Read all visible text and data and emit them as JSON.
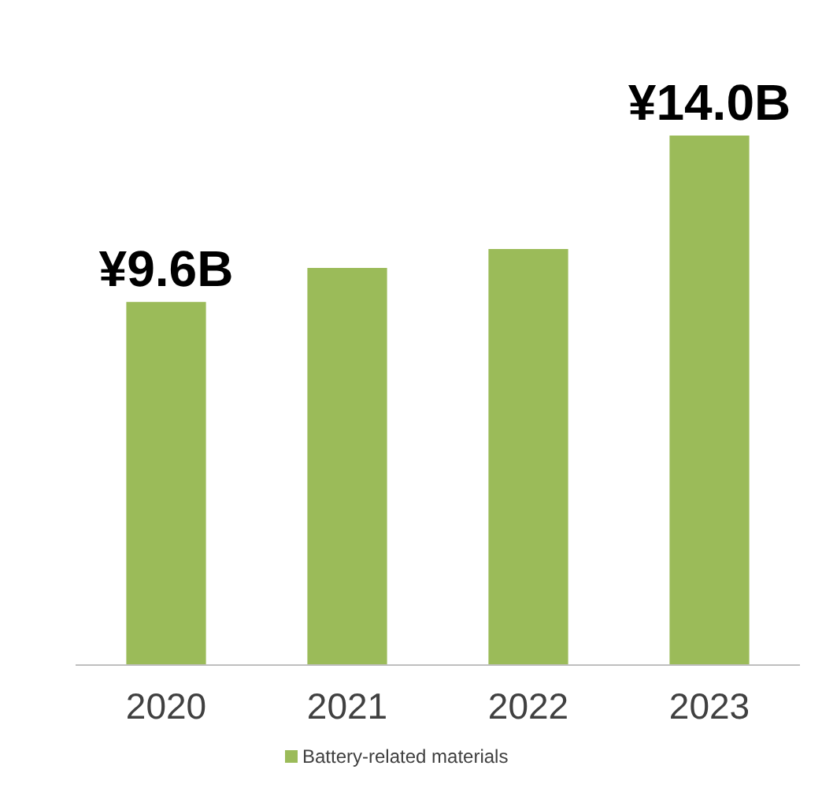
{
  "chart_data": {
    "type": "bar",
    "categories": [
      "2020",
      "2021",
      "2022",
      "2023"
    ],
    "series": [
      {
        "name": "Battery-related materials",
        "color": "#9bbb59",
        "values": [
          9.6,
          10.5,
          11.0,
          14.0
        ],
        "value_labels": [
          "¥9.6B",
          null,
          null,
          "¥14.0B"
        ]
      }
    ],
    "legend": "bottom"
  }
}
